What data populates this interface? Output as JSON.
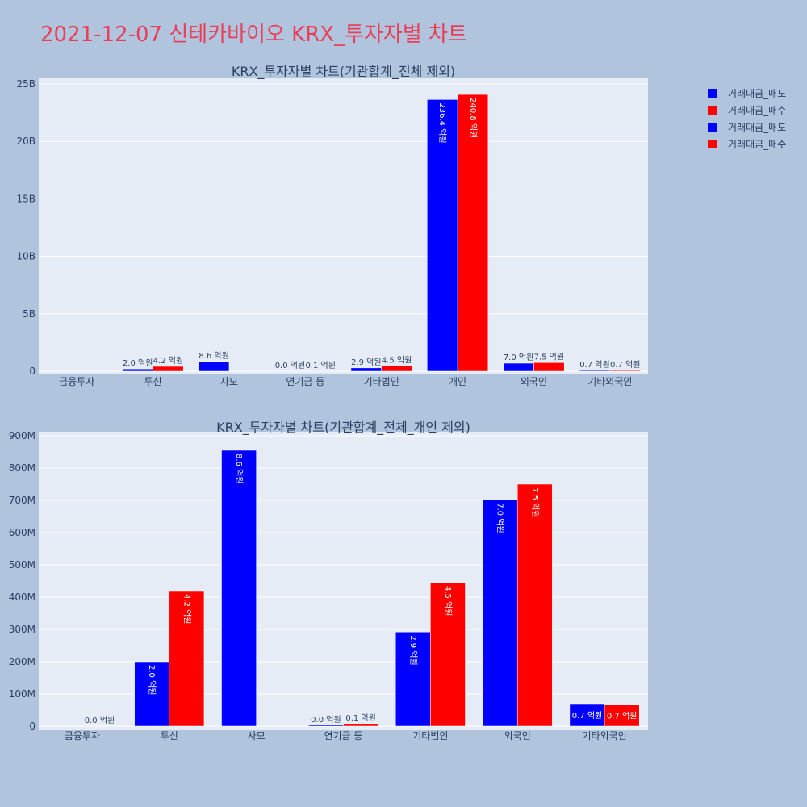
{
  "title": "2021-12-07 신테카바이오 KRX_투자자별 차트",
  "colors": {
    "sell": "#0000ff",
    "buy": "#ff0000",
    "plot_bg": "#e5ecf6",
    "page_bg": "#b0c4de",
    "title": "#e8405a"
  },
  "legend": [
    "거래대금_매도",
    "거래대금_매수",
    "거래대금_매도",
    "거래대금_매수"
  ],
  "chart_data": [
    {
      "type": "bar",
      "title": "KRX_투자자별 차트(기관합계_전체 제외)",
      "categories": [
        "금융투자",
        "투신",
        "사모",
        "연기금 등",
        "기타법인",
        "개인",
        "외국인",
        "기타외국인"
      ],
      "yticks": [
        "0",
        "5B",
        "10B",
        "15B",
        "20B",
        "25B"
      ],
      "ylim": [
        0,
        25200000000
      ],
      "series": [
        {
          "name": "거래대금_매도",
          "values": [
            0,
            200000000,
            860000000,
            3000000,
            290000000,
            23640000000,
            700000000,
            70000000
          ],
          "labels": [
            "",
            "2.0 억원",
            "8.6 억원",
            "0.0 억원",
            "2.9 억원",
            "236.4 억원",
            "7.0 억원",
            "0.7 억원"
          ]
        },
        {
          "name": "거래대금_매수",
          "values": [
            0,
            420000000,
            0,
            8000000,
            450000000,
            24080000000,
            750000000,
            68000000
          ],
          "labels": [
            "",
            "4.2 억원",
            "",
            "0.1 억원",
            "4.5 억원",
            "240.8 억원",
            "7.5 억원",
            "0.7 억원"
          ]
        }
      ]
    },
    {
      "type": "bar",
      "title": "KRX_투자자별 차트(기관합계_전체_개인 제외)",
      "categories": [
        "금융투자",
        "투신",
        "사모",
        "연기금 등",
        "기타법인",
        "외국인",
        "기타외국인"
      ],
      "yticks": [
        "0",
        "100M",
        "200M",
        "300M",
        "400M",
        "500M",
        "600M",
        "700M",
        "800M",
        "900M"
      ],
      "ylim": [
        0,
        910000000
      ],
      "series": [
        {
          "name": "거래대금_매도",
          "values": [
            0,
            200000000,
            855000000,
            3000000,
            292000000,
            702000000,
            70000000
          ],
          "labels": [
            "",
            "2.0 억원",
            "8.6 억원",
            "0.0 억원",
            "2.9 억원",
            "7.0 억원",
            "0.7 억원"
          ]
        },
        {
          "name": "거래대금_매수",
          "values": [
            0,
            420000000,
            0,
            8000000,
            445000000,
            750000000,
            68000000
          ],
          "labels": [
            "0.0 억원",
            "4.2 억원",
            "",
            "0.1 억원",
            "4.5 억원",
            "7.5 억원",
            "0.7 억원"
          ]
        }
      ]
    }
  ]
}
